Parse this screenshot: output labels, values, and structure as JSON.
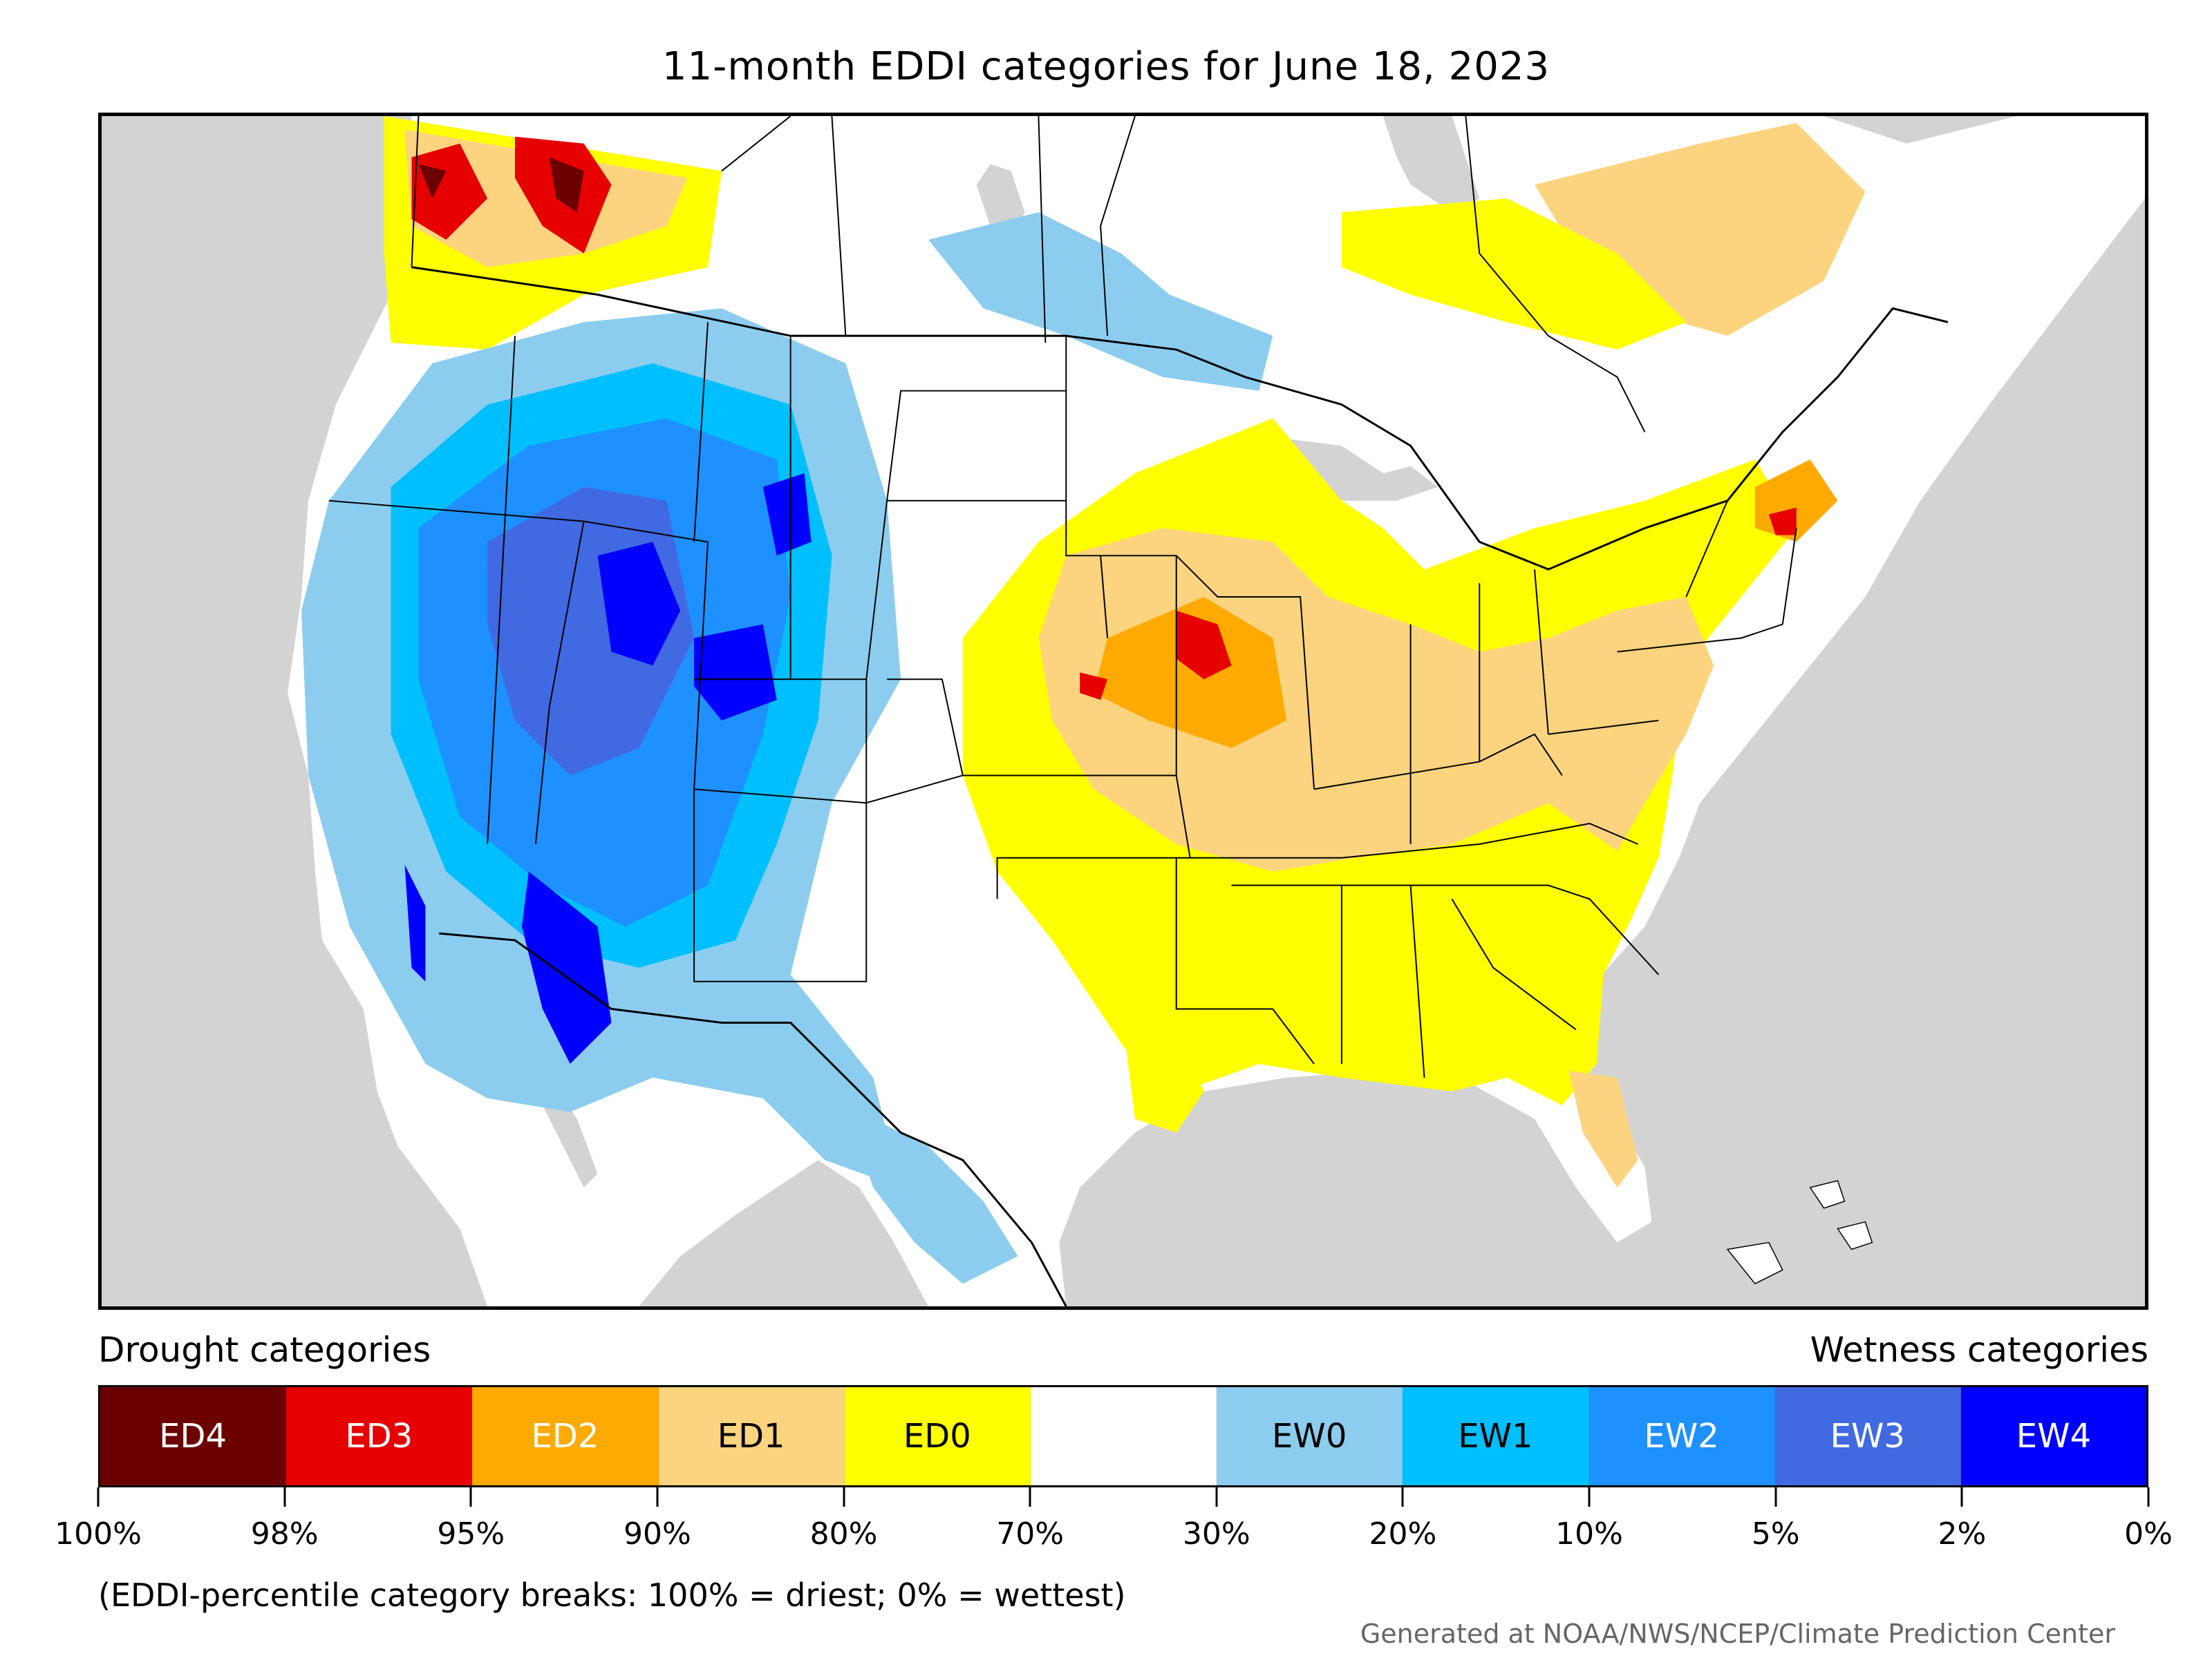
{
  "title": "11-month EDDI categories for June 18, 2023",
  "legend": {
    "left_heading": "Drought categories",
    "right_heading": "Wetness categories",
    "categories": [
      {
        "label": "ED4",
        "color": "#6b0000",
        "text_color": "#ffffff"
      },
      {
        "label": "ED3",
        "color": "#e60000",
        "text_color": "#ffffff"
      },
      {
        "label": "ED2",
        "color": "#ffaa00",
        "text_color": "#ffffff"
      },
      {
        "label": "ED1",
        "color": "#fcd37f",
        "text_color": "#000000"
      },
      {
        "label": "ED0",
        "color": "#ffff00",
        "text_color": "#000000"
      },
      {
        "label": "",
        "color": "#ffffff",
        "text_color": "#000000"
      },
      {
        "label": "EW0",
        "color": "#8ccdef",
        "text_color": "#000000"
      },
      {
        "label": "EW1",
        "color": "#00bfff",
        "text_color": "#000000"
      },
      {
        "label": "EW2",
        "color": "#1e90ff",
        "text_color": "#ffffff"
      },
      {
        "label": "EW3",
        "color": "#4169e1",
        "text_color": "#ffffff"
      },
      {
        "label": "EW4",
        "color": "#0000ff",
        "text_color": "#ffffff"
      }
    ],
    "tick_labels": [
      "100%",
      "98%",
      "95%",
      "90%",
      "80%",
      "70%",
      "30%",
      "20%",
      "10%",
      "5%",
      "2%",
      "0%"
    ]
  },
  "note": "(EDDI-percentile category breaks: 100% = driest; 0% = wettest)",
  "credit": "Generated at NOAA/NWS/NCEP/Climate Prediction Center",
  "map": {
    "background_color": "#d3d3d3",
    "land_color": "#ffffff",
    "water_color": "#d3d3d3",
    "boundary_color": "#000000"
  }
}
